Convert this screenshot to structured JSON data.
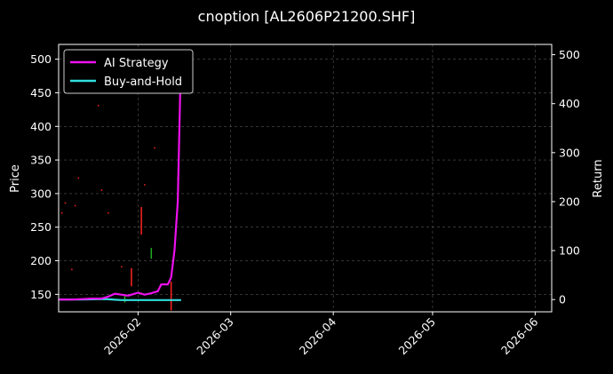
{
  "chart_data": {
    "type": "line",
    "title": "cnoption [AL2606P21200.SHF]",
    "ylabel_left": "Price",
    "ylabel_right": "Return",
    "xlim": [
      "2026-01-08",
      "2026-06-06"
    ],
    "ylim_left": [
      124,
      522
    ],
    "ylim_right": [
      -25,
      521
    ],
    "yticks_left": [
      150,
      200,
      250,
      300,
      350,
      400,
      450,
      500
    ],
    "yticks_right": [
      0,
      100,
      200,
      300,
      400,
      500
    ],
    "xticks": [
      {
        "date": "2026-02-01",
        "label": "2026-02"
      },
      {
        "date": "2026-03-01",
        "label": "2026-03"
      },
      {
        "date": "2026-04-01",
        "label": "2026-04"
      },
      {
        "date": "2026-05-01",
        "label": "2026-05"
      },
      {
        "date": "2026-06-01",
        "label": "2026-06"
      }
    ],
    "grid": true,
    "legend_position": "top-left",
    "colors": {
      "up": "#22aa22",
      "down": "#ff2222",
      "strategy": "#ee11ee",
      "buyhold": "#33dddd",
      "grid": "#555555"
    },
    "series": [
      {
        "name": "AI Strategy",
        "axis": "right",
        "color": "#ee11ee",
        "points": [
          [
            "2026-01-08",
            0
          ],
          [
            "2026-01-12",
            0
          ],
          [
            "2026-01-15",
            1
          ],
          [
            "2026-01-18",
            2
          ],
          [
            "2026-01-21",
            2
          ],
          [
            "2026-01-23",
            6
          ],
          [
            "2026-01-25",
            12
          ],
          [
            "2026-01-27",
            10
          ],
          [
            "2026-01-29",
            8
          ],
          [
            "2026-01-31",
            12
          ],
          [
            "2026-02-01",
            14
          ],
          [
            "2026-02-03",
            10
          ],
          [
            "2026-02-05",
            13
          ],
          [
            "2026-02-07",
            17
          ],
          [
            "2026-02-08",
            31
          ],
          [
            "2026-02-10",
            31
          ],
          [
            "2026-02-11",
            45
          ],
          [
            "2026-02-12",
            100
          ],
          [
            "2026-02-13",
            200
          ],
          [
            "2026-02-14",
            500
          ]
        ]
      },
      {
        "name": "Buy-and-Hold",
        "axis": "right",
        "color": "#33dddd",
        "points": [
          [
            "2026-01-08",
            0
          ],
          [
            "2026-01-15",
            0
          ],
          [
            "2026-01-22",
            1
          ],
          [
            "2026-01-27",
            -1
          ],
          [
            "2026-02-01",
            -1
          ],
          [
            "2026-02-05",
            -1
          ],
          [
            "2026-02-10",
            -1
          ],
          [
            "2026-02-14",
            -1
          ]
        ]
      }
    ],
    "candles": [
      {
        "date": "2026-01-09",
        "low": 270,
        "high": 272,
        "dir": "down"
      },
      {
        "date": "2026-01-10",
        "low": 285,
        "high": 287,
        "dir": "down"
      },
      {
        "date": "2026-01-12",
        "low": 186,
        "high": 188,
        "dir": "down"
      },
      {
        "date": "2026-01-13",
        "low": 281,
        "high": 283,
        "dir": "down"
      },
      {
        "date": "2026-01-14",
        "low": 322,
        "high": 324,
        "dir": "down"
      },
      {
        "date": "2026-01-20",
        "low": 430,
        "high": 432,
        "dir": "down"
      },
      {
        "date": "2026-01-21",
        "low": 304,
        "high": 306,
        "dir": "down"
      },
      {
        "date": "2026-01-23",
        "low": 270,
        "high": 272,
        "dir": "down"
      },
      {
        "date": "2026-01-27",
        "low": 190,
        "high": 192,
        "dir": "down"
      },
      {
        "date": "2026-01-28",
        "low": 138,
        "high": 149,
        "dir": "up"
      },
      {
        "date": "2026-01-30",
        "low": 162,
        "high": 189,
        "dir": "down"
      },
      {
        "date": "2026-02-02",
        "low": 239,
        "high": 280,
        "dir": "down"
      },
      {
        "date": "2026-02-03",
        "low": 312,
        "high": 314,
        "dir": "down"
      },
      {
        "date": "2026-02-05",
        "low": 203,
        "high": 219,
        "dir": "up"
      },
      {
        "date": "2026-02-06",
        "low": 367,
        "high": 369,
        "dir": "down"
      },
      {
        "date": "2026-02-11",
        "low": 126,
        "high": 169,
        "dir": "down"
      },
      {
        "date": "2026-02-13",
        "low": 321,
        "high": 323,
        "dir": "down"
      }
    ]
  }
}
